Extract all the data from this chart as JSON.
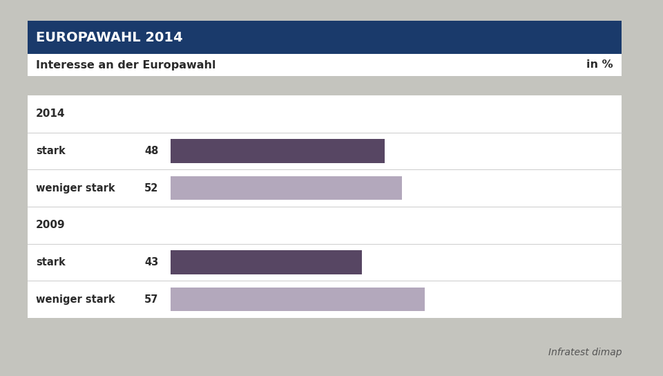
{
  "title_banner": "EUROPAWAHL 2014",
  "subtitle": "Interesse an der Europawahl",
  "subtitle_right": "in %",
  "source": "Infratest dimap",
  "banner_color": "#1a3a6b",
  "banner_text_color": "#ffffff",
  "background_color": "#c4c4be",
  "chart_bg_color": "#ffffff",
  "dark_bar_color": "#574663",
  "light_bar_color": "#b3a8bc",
  "rows": [
    {
      "type": "year",
      "text": "2014"
    },
    {
      "type": "bar",
      "label": "stark",
      "value": 48,
      "bar_color": "#574663"
    },
    {
      "type": "bar",
      "label": "weniger stark",
      "value": 52,
      "bar_color": "#b3a8bc"
    },
    {
      "type": "year",
      "text": "2009"
    },
    {
      "type": "bar",
      "label": "stark",
      "value": 43,
      "bar_color": "#574663"
    },
    {
      "type": "bar",
      "label": "weniger stark",
      "value": 57,
      "bar_color": "#b3a8bc"
    }
  ]
}
